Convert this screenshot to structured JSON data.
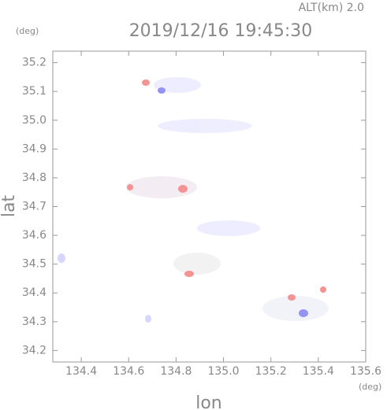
{
  "chart_data": {
    "type": "map",
    "title": "2019/12/16 19:45:30",
    "subtitle": "ALT(km) 2.0",
    "x_label": "lon",
    "y_label": "lat",
    "x_unit": "(deg)",
    "y_unit": "(deg)",
    "xlim": [
      134.28,
      135.6
    ],
    "ylim": [
      34.16,
      35.24
    ],
    "xticks": [
      {
        "value": 134.4,
        "label": "134.4"
      },
      {
        "value": 134.6,
        "label": "134.6"
      },
      {
        "value": 134.8,
        "label": "134.8"
      },
      {
        "value": 135.0,
        "label": "135.0"
      },
      {
        "value": 135.2,
        "label": "135.2"
      },
      {
        "value": 135.4,
        "label": "135.4"
      },
      {
        "value": 135.6,
        "label": "135.6"
      }
    ],
    "yticks": [
      {
        "value": 34.2,
        "label": "34.2"
      },
      {
        "value": 34.3,
        "label": "34.3"
      },
      {
        "value": 34.4,
        "label": "34.4"
      },
      {
        "value": 34.5,
        "label": "34.5"
      },
      {
        "value": 34.6,
        "label": "34.6"
      },
      {
        "value": 34.7,
        "label": "34.7"
      },
      {
        "value": 34.8,
        "label": "34.8"
      },
      {
        "value": 34.9,
        "label": "34.9"
      },
      {
        "value": 35.0,
        "label": "35.0"
      },
      {
        "value": 35.1,
        "label": "35.1"
      },
      {
        "value": 35.2,
        "label": "35.2"
      }
    ]
  }
}
